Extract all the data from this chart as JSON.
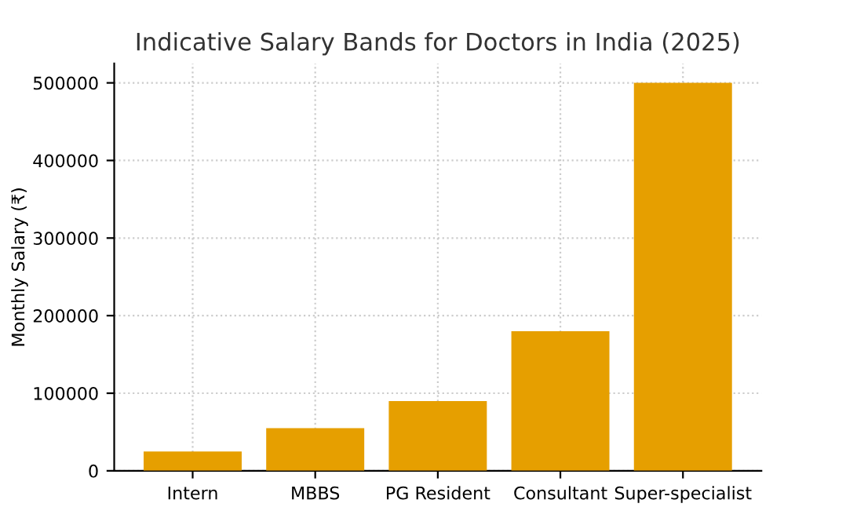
{
  "chart_data": {
    "type": "bar",
    "title": "Indicative Salary Bands for Doctors in India (2025)",
    "ylabel": "Monthly Salary (₹)",
    "categories": [
      "Intern",
      "MBBS",
      "PG Resident",
      "Consultant",
      "Super-specialist"
    ],
    "values": [
      25000,
      55000,
      90000,
      180000,
      500000
    ],
    "color": "#e69f00",
    "ylim": [
      0,
      525000
    ],
    "yticks": [
      0,
      100000,
      200000,
      300000,
      400000,
      500000
    ],
    "grid": true
  }
}
